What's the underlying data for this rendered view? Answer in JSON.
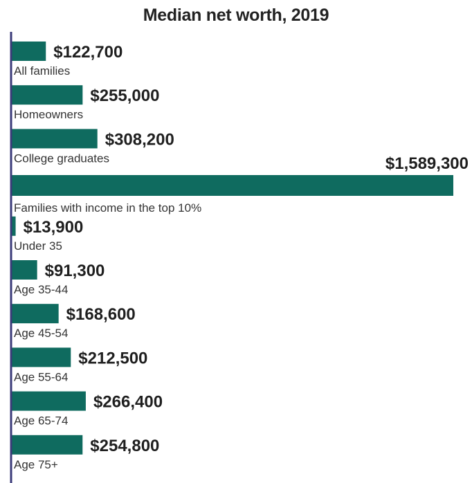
{
  "chart_data": {
    "type": "bar",
    "orientation": "horizontal",
    "title": "Median net worth, 2019",
    "xlabel": "",
    "ylabel": "",
    "categories": [
      "All families",
      "Homeowners",
      "College graduates",
      "Families with income in the top 10%",
      "Under 35",
      "Age 35-44",
      "Age 45-54",
      "Age 55-64",
      "Age 65-74",
      "Age 75+"
    ],
    "values": [
      122700,
      255000,
      308200,
      1589300,
      13900,
      91300,
      168600,
      212500,
      266400,
      254800
    ],
    "value_labels": [
      "$122,700",
      "$255,000",
      "$308,200",
      "$1,589,300",
      "$13,900",
      "$91,300",
      "$168,600",
      "$212,500",
      "$266,400",
      "$254,800"
    ],
    "xlim": [
      0,
      1589300
    ],
    "grid": false,
    "bar_color": "#0f6b5f",
    "axis_color": "#3b3b7a"
  }
}
